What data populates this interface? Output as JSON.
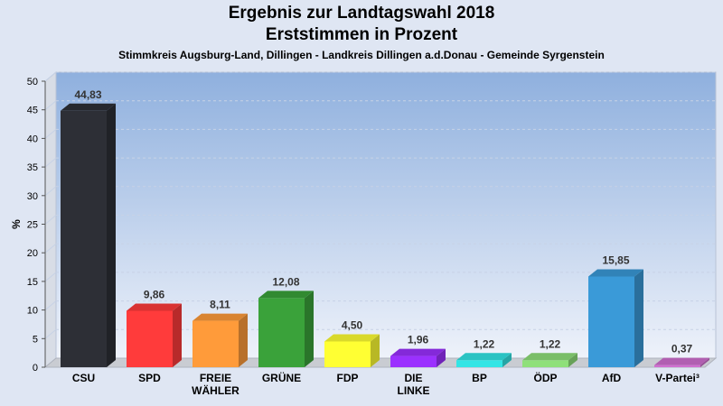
{
  "chart_data": {
    "type": "bar",
    "title": "Ergebnis zur Landtagswahl 2018",
    "subtitle": "Erststimmen in Prozent",
    "caption": "Stimmkreis Augsburg-Land, Dillingen - Landkreis Dillingen a.d.Donau - Gemeinde Syrgenstein",
    "ylabel": "%",
    "ylim": [
      0,
      50
    ],
    "yticks": [
      0,
      5,
      10,
      15,
      20,
      25,
      30,
      35,
      40,
      45,
      50
    ],
    "categories": [
      [
        "CSU"
      ],
      [
        "SPD"
      ],
      [
        "FREIE",
        "WÄHLER"
      ],
      [
        "GRÜNE"
      ],
      [
        "FDP"
      ],
      [
        "DIE",
        "LINKE"
      ],
      [
        "BP"
      ],
      [
        "ÖDP"
      ],
      [
        "AfD"
      ],
      [
        "V-Partei³"
      ]
    ],
    "values": [
      44.83,
      9.86,
      8.11,
      12.08,
      4.5,
      1.96,
      1.22,
      1.22,
      15.85,
      0.37
    ],
    "value_labels": [
      "44,83",
      "9,86",
      "8,11",
      "12,08",
      "4,50",
      "1,96",
      "1,22",
      "1,22",
      "15,85",
      "0,37"
    ],
    "colors": [
      "#2d2f36",
      "#ff3b3b",
      "#ff9b3a",
      "#3aa23a",
      "#ffff33",
      "#9b30ff",
      "#33e5e5",
      "#8fe07a",
      "#3a9ad8",
      "#d070d0"
    ],
    "grid": true
  }
}
